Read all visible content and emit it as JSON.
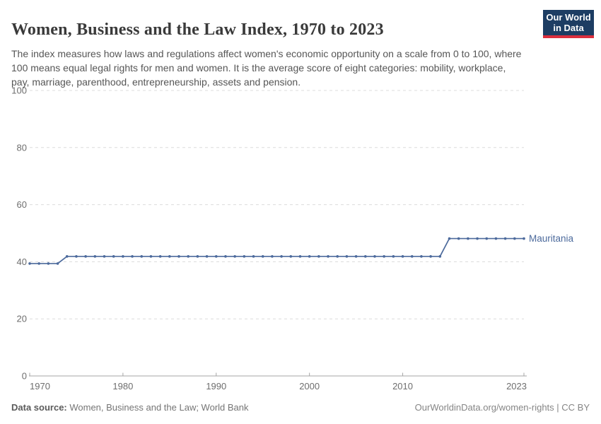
{
  "logo": {
    "line1": "Our World",
    "line2": "in Data",
    "bg_color": "#1d3d63",
    "accent_color": "#dc2f3e"
  },
  "chart_data": {
    "type": "line",
    "title": "Women, Business and the Law Index, 1970 to 2023",
    "subtitle": "The index measures how laws and regulations affect women's economic opportunity on a scale from 0 to 100, where 100 means equal legal rights for men and women. It is the average score of eight categories: mobility, workplace, pay, marriage, parenthood, entrepreneurship, assets and pension.",
    "x": [
      1970,
      1971,
      1972,
      1973,
      1974,
      1975,
      1976,
      1977,
      1978,
      1979,
      1980,
      1981,
      1982,
      1983,
      1984,
      1985,
      1986,
      1987,
      1988,
      1989,
      1990,
      1991,
      1992,
      1993,
      1994,
      1995,
      1996,
      1997,
      1998,
      1999,
      2000,
      2001,
      2002,
      2003,
      2004,
      2005,
      2006,
      2007,
      2008,
      2009,
      2010,
      2011,
      2012,
      2013,
      2014,
      2015,
      2016,
      2017,
      2018,
      2019,
      2020,
      2021,
      2022,
      2023
    ],
    "series": [
      {
        "name": "Mauritania",
        "color": "#4c6a9c",
        "values": [
          39.375,
          39.375,
          39.375,
          39.375,
          41.875,
          41.875,
          41.875,
          41.875,
          41.875,
          41.875,
          41.875,
          41.875,
          41.875,
          41.875,
          41.875,
          41.875,
          41.875,
          41.875,
          41.875,
          41.875,
          41.875,
          41.875,
          41.875,
          41.875,
          41.875,
          41.875,
          41.875,
          41.875,
          41.875,
          41.875,
          41.875,
          41.875,
          41.875,
          41.875,
          41.875,
          41.875,
          41.875,
          41.875,
          41.875,
          41.875,
          41.875,
          41.875,
          41.875,
          41.875,
          41.875,
          48.125,
          48.125,
          48.125,
          48.125,
          48.125,
          48.125,
          48.125,
          48.125,
          48.125
        ]
      }
    ],
    "ylim": [
      0,
      100
    ],
    "yticks": [
      0,
      20,
      40,
      60,
      80,
      100
    ],
    "xticks": [
      1970,
      1980,
      1990,
      2000,
      2010,
      2023
    ],
    "grid": "horizontal dashed gridlines, solid x-axis baseline with upward ticks",
    "legend_position": "label at end of line"
  },
  "footer": {
    "datasource_label": "Data source:",
    "datasource_value": " Women, Business and the Law; World Bank",
    "credit": "OurWorldinData.org/women-rights | CC BY"
  }
}
